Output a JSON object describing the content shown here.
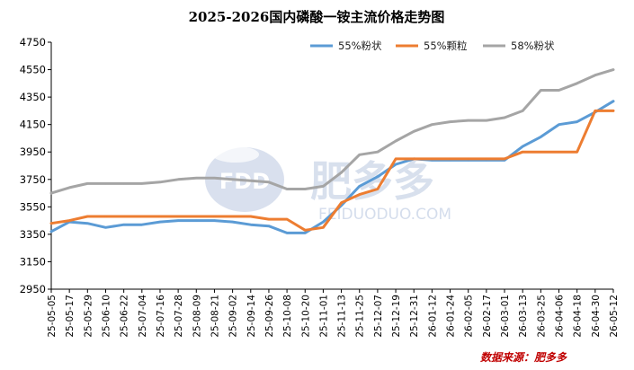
{
  "colors": {
    "series_55_powder": "#5b9bd5",
    "series_55_granule": "#ed7d31",
    "series_58_powder": "#a5a5a5",
    "source_text": "#c00000",
    "watermark": "#b9c7e0"
  },
  "watermark": {
    "logo_text": "FDD",
    "cn_text": "肥多多",
    "en_text": "FEIDUODUO.COM"
  },
  "source_label": "数据来源：肥多多",
  "chart_data": {
    "type": "line",
    "title": "2025-2026国内磷酸一铵主流价格走势图",
    "xlabel": "",
    "ylabel": "",
    "ylim": [
      2950,
      4750
    ],
    "yticks": [
      2950,
      3150,
      3350,
      3550,
      3750,
      3950,
      4150,
      4350,
      4550,
      4750
    ],
    "grid": false,
    "legend_position": "top-right",
    "categories": [
      "25-05-05",
      "25-05-17",
      "25-05-29",
      "25-06-10",
      "25-06-22",
      "25-07-04",
      "25-07-16",
      "25-07-28",
      "25-08-09",
      "25-08-21",
      "25-09-02",
      "25-09-14",
      "25-09-26",
      "25-10-08",
      "25-10-20",
      "25-11-01",
      "25-11-13",
      "25-11-25",
      "25-12-07",
      "25-12-19",
      "25-12-31",
      "26-01-12",
      "26-01-24",
      "26-02-05",
      "26-02-17",
      "26-03-01",
      "26-03-13",
      "26-03-25",
      "26-04-06",
      "26-04-18",
      "26-04-30",
      "26-05-12"
    ],
    "series": [
      {
        "name": "55%粉状",
        "values": [
          3370,
          3440,
          3430,
          3400,
          3420,
          3420,
          3440,
          3450,
          3450,
          3450,
          3440,
          3420,
          3410,
          3360,
          3360,
          3440,
          3560,
          3700,
          3770,
          3860,
          3900,
          3890,
          3890,
          3890,
          3890,
          3890,
          3990,
          4060,
          4150,
          4170,
          4240,
          4320
        ]
      },
      {
        "name": "55%颗粒",
        "values": [
          3430,
          3450,
          3480,
          3480,
          3480,
          3480,
          3480,
          3480,
          3480,
          3480,
          3480,
          3480,
          3460,
          3460,
          3380,
          3400,
          3580,
          3640,
          3680,
          3900,
          3900,
          3900,
          3900,
          3900,
          3900,
          3900,
          3950,
          3950,
          3950,
          3950,
          4250,
          4250
        ]
      },
      {
        "name": "58%粉状",
        "values": [
          3650,
          3690,
          3720,
          3720,
          3720,
          3720,
          3730,
          3750,
          3760,
          3760,
          3750,
          3740,
          3730,
          3680,
          3680,
          3700,
          3800,
          3930,
          3950,
          4030,
          4100,
          4150,
          4170,
          4180,
          4180,
          4200,
          4250,
          4400,
          4400,
          4450,
          4510,
          4550
        ]
      }
    ]
  }
}
